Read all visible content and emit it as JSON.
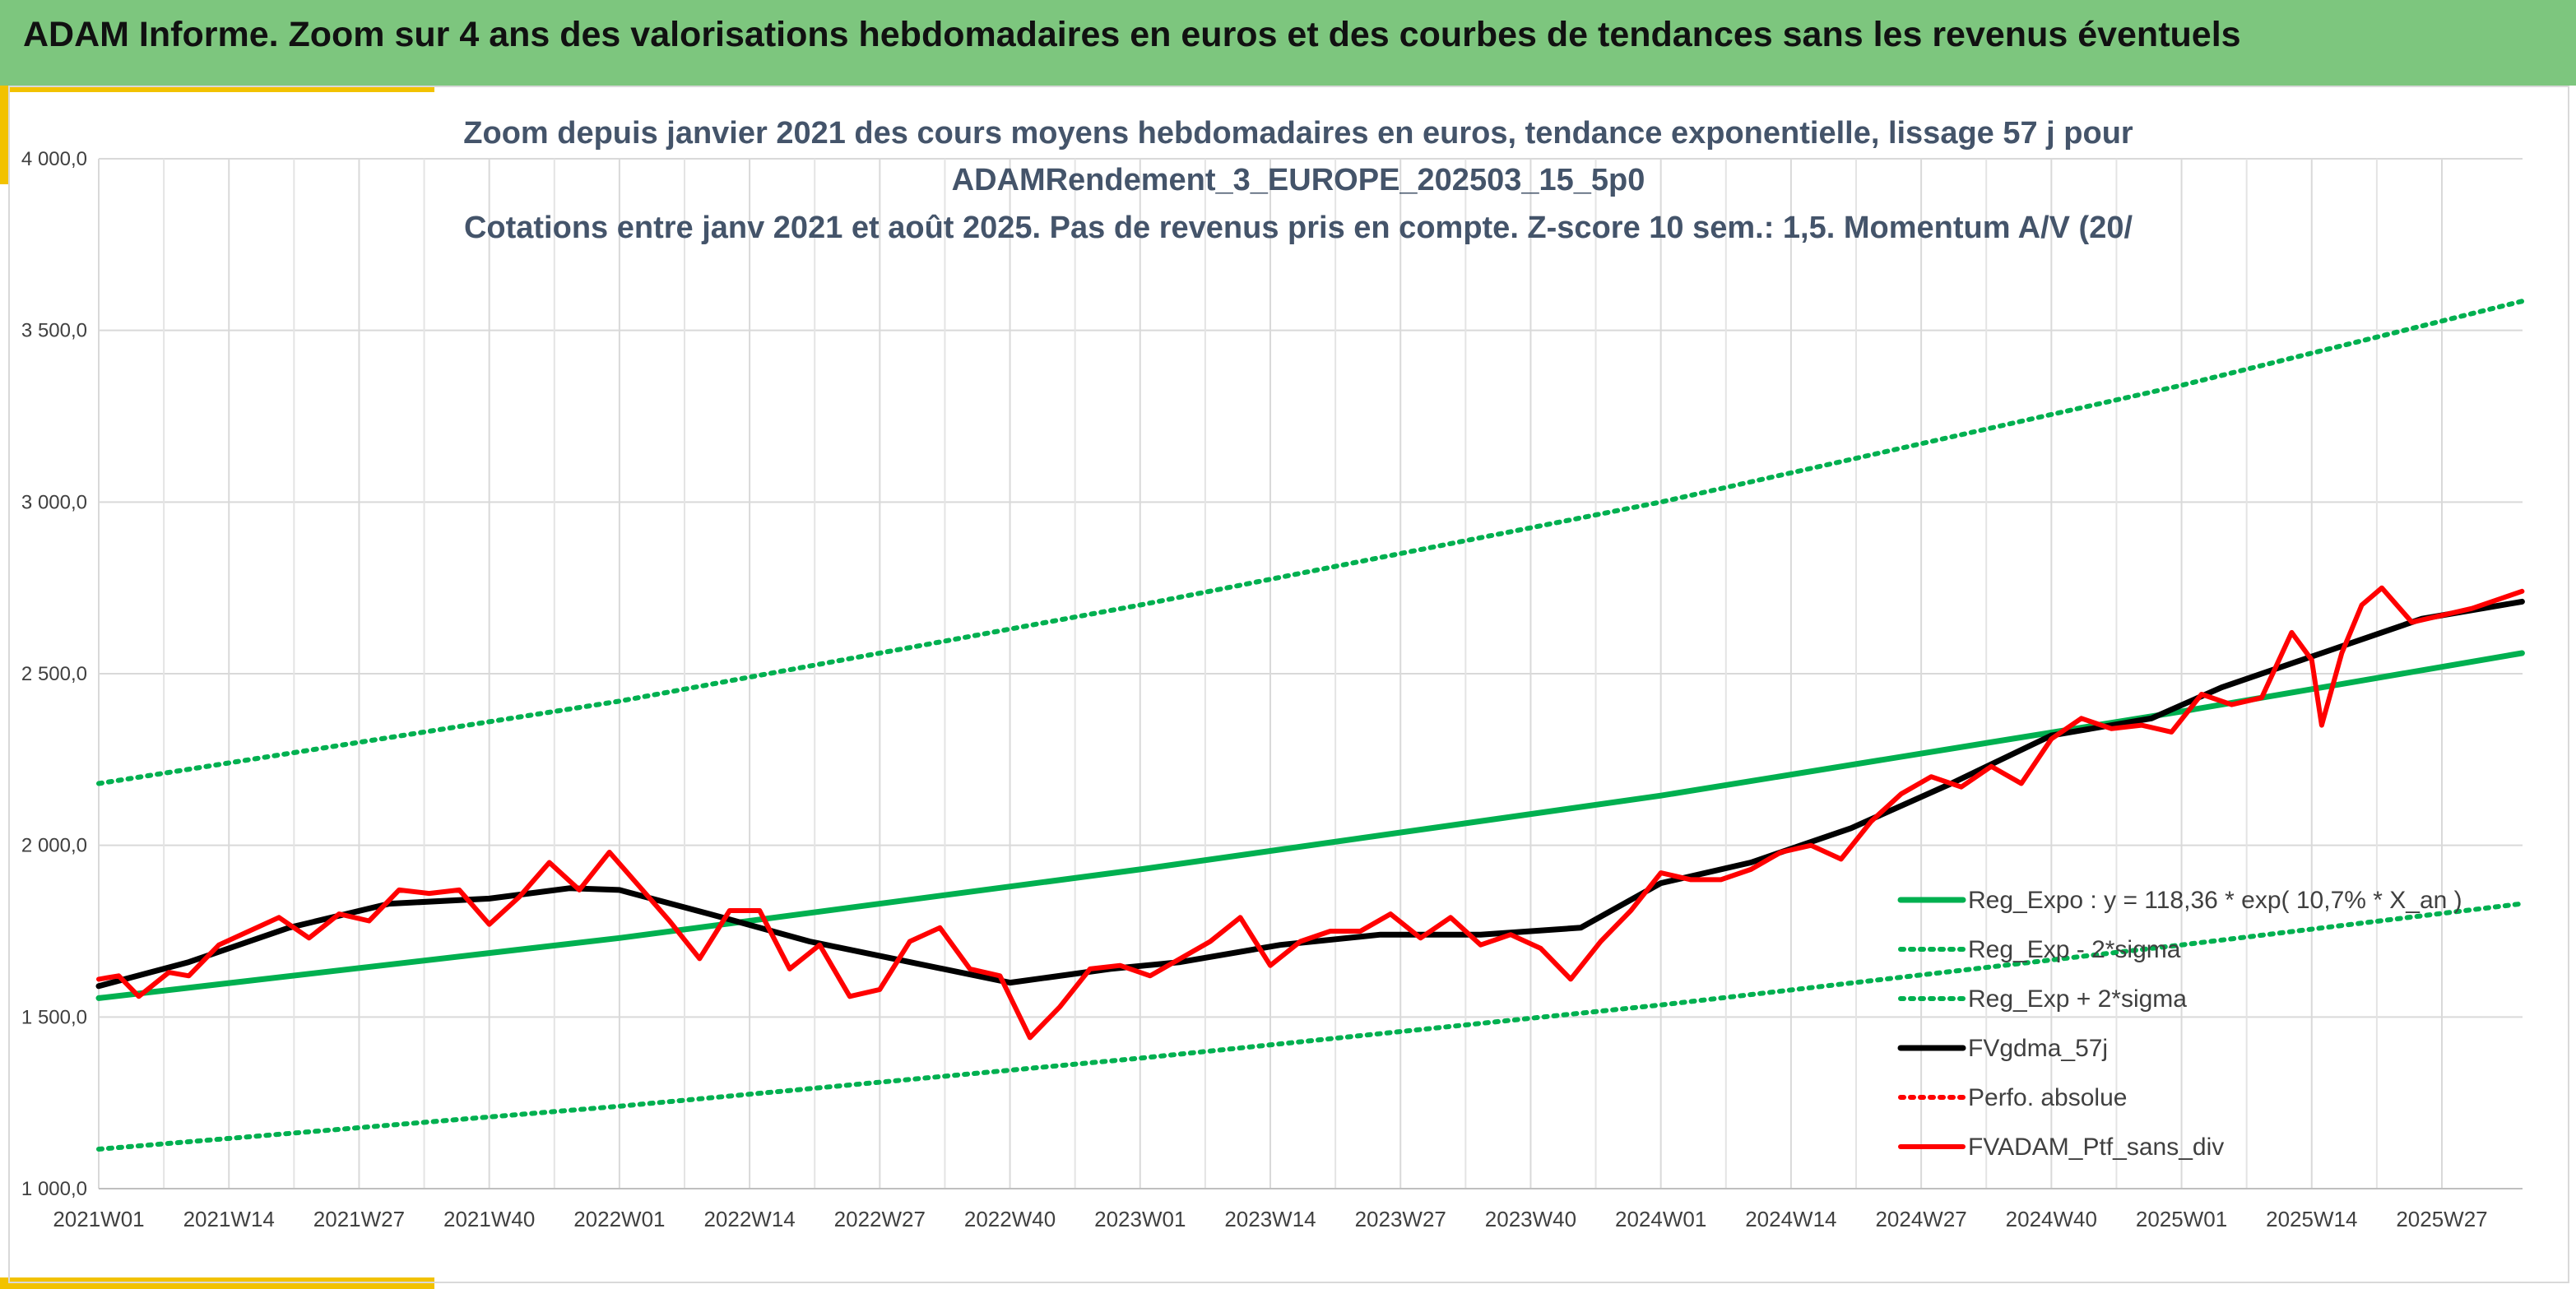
{
  "banner": {
    "title": "ADAM Informe. Zoom sur 4 ans des valorisations hebdomadaires en euros et des courbes de tendances sans les revenus éventuels"
  },
  "colors": {
    "banner": "#7dc67e",
    "accent": "#f2c200",
    "trend": "#00b050",
    "gdma": "#000000",
    "ptf": "#ff0000",
    "title": "#44546a"
  },
  "chart_data": {
    "type": "line",
    "title": [
      "Zoom depuis janvier 2021 des cours moyens hebdomadaires en euros, tendance exponentielle, lissage 57 j pour",
      "ADAMRendement_3_EUROPE_202503_15_5p0",
      "Cotations entre janv 2021 et août 2025. Pas de revenus pris en compte. Z-score 10 sem.: 1,5. Momentum A/V (20/"
    ],
    "ylim": [
      1000,
      4000
    ],
    "yticks": [
      "1 000,0",
      "1 500,0",
      "2 000,0",
      "2 500,0",
      "3 000,0",
      "3 500,0",
      "4 000,0"
    ],
    "xticks": [
      "2021W01",
      "2021W14",
      "2021W27",
      "2021W40",
      "2022W01",
      "2022W14",
      "2022W27",
      "2022W40",
      "2023W01",
      "2023W14",
      "2023W27",
      "2023W40",
      "2024W01",
      "2024W14",
      "2024W27",
      "2024W40",
      "2025W01",
      "2025W14",
      "2025W27"
    ],
    "grid": true,
    "legend_position": "bottom-right",
    "series": [
      {
        "name": "Reg_Expo : y = 118,36 * exp( 10,7% *  X_an )",
        "style": "solid-green",
        "x": [
          "2021W01",
          "2022W01",
          "2023W01",
          "2024W01",
          "2025W01",
          "2025W35"
        ],
        "values": [
          1555,
          1730,
          1930,
          2145,
          2390,
          2560
        ]
      },
      {
        "name": "Reg_Exp - 2*sigma",
        "style": "dotted-green",
        "x": [
          "2021W01",
          "2022W01",
          "2023W01",
          "2024W01",
          "2025W01",
          "2025W35"
        ],
        "values": [
          1115,
          1240,
          1380,
          1535,
          1710,
          1830
        ]
      },
      {
        "name": "Reg_Exp + 2*sigma",
        "style": "dotted-green",
        "x": [
          "2021W01",
          "2022W01",
          "2023W01",
          "2024W01",
          "2025W01",
          "2025W35"
        ],
        "values": [
          2180,
          2420,
          2700,
          3000,
          3340,
          3585
        ]
      },
      {
        "name": "FVgdma_57j",
        "style": "solid-black",
        "x": [
          "2021W01",
          "2021W10",
          "2021W20",
          "2021W30",
          "2021W40",
          "2021W48",
          "2022W01",
          "2022W10",
          "2022W20",
          "2022W30",
          "2022W40",
          "2022W50",
          "2023W05",
          "2023W15",
          "2023W25",
          "2023W35",
          "2023W45",
          "2024W01",
          "2024W10",
          "2024W20",
          "2024W30",
          "2024W40",
          "2024W50",
          "2025W05",
          "2025W15",
          "2025W25",
          "2025W35"
        ],
        "values": [
          1590,
          1660,
          1760,
          1830,
          1845,
          1875,
          1870,
          1800,
          1720,
          1660,
          1600,
          1640,
          1660,
          1710,
          1740,
          1740,
          1760,
          1890,
          1950,
          2050,
          2180,
          2320,
          2370,
          2460,
          2560,
          2660,
          2710
        ]
      },
      {
        "name": "Perfo. absolue",
        "style": "dotted-red",
        "x": [],
        "values": []
      },
      {
        "name": "FVADAM_Ptf_sans_div",
        "style": "solid-red",
        "x": [
          "2021W01",
          "2021W03",
          "2021W05",
          "2021W08",
          "2021W10",
          "2021W13",
          "2021W16",
          "2021W19",
          "2021W22",
          "2021W25",
          "2021W28",
          "2021W31",
          "2021W34",
          "2021W37",
          "2021W40",
          "2021W43",
          "2021W46",
          "2021W49",
          "2021W52",
          "2022W03",
          "2022W06",
          "2022W09",
          "2022W12",
          "2022W15",
          "2022W18",
          "2022W21",
          "2022W24",
          "2022W27",
          "2022W30",
          "2022W33",
          "2022W36",
          "2022W39",
          "2022W42",
          "2022W45",
          "2022W48",
          "2022W51",
          "2023W02",
          "2023W05",
          "2023W08",
          "2023W11",
          "2023W14",
          "2023W17",
          "2023W20",
          "2023W23",
          "2023W26",
          "2023W29",
          "2023W32",
          "2023W35",
          "2023W38",
          "2023W41",
          "2023W44",
          "2023W47",
          "2023W50",
          "2024W01",
          "2024W04",
          "2024W07",
          "2024W10",
          "2024W13",
          "2024W16",
          "2024W19",
          "2024W22",
          "2024W25",
          "2024W28",
          "2024W31",
          "2024W34",
          "2024W37",
          "2024W40",
          "2024W43",
          "2024W46",
          "2024W49",
          "2024W52",
          "2025W03",
          "2025W06",
          "2025W09",
          "2025W12",
          "2025W14",
          "2025W15",
          "2025W17",
          "2025W19",
          "2025W21",
          "2025W24",
          "2025W27",
          "2025W30",
          "2025W33",
          "2025W35"
        ],
        "values": [
          1610,
          1620,
          1560,
          1630,
          1620,
          1710,
          1750,
          1790,
          1730,
          1800,
          1780,
          1870,
          1860,
          1870,
          1770,
          1850,
          1950,
          1870,
          1980,
          1880,
          1780,
          1670,
          1810,
          1810,
          1640,
          1710,
          1560,
          1580,
          1720,
          1760,
          1640,
          1620,
          1440,
          1530,
          1640,
          1650,
          1620,
          1670,
          1720,
          1790,
          1650,
          1720,
          1750,
          1750,
          1800,
          1730,
          1790,
          1710,
          1740,
          1700,
          1610,
          1720,
          1810,
          1920,
          1900,
          1900,
          1930,
          1980,
          2000,
          1960,
          2070,
          2150,
          2200,
          2170,
          2230,
          2180,
          2310,
          2370,
          2340,
          2350,
          2330,
          2440,
          2410,
          2430,
          2620,
          2540,
          2350,
          2560,
          2700,
          2750,
          2650,
          2670,
          2690,
          2720,
          2740
        ]
      }
    ]
  }
}
